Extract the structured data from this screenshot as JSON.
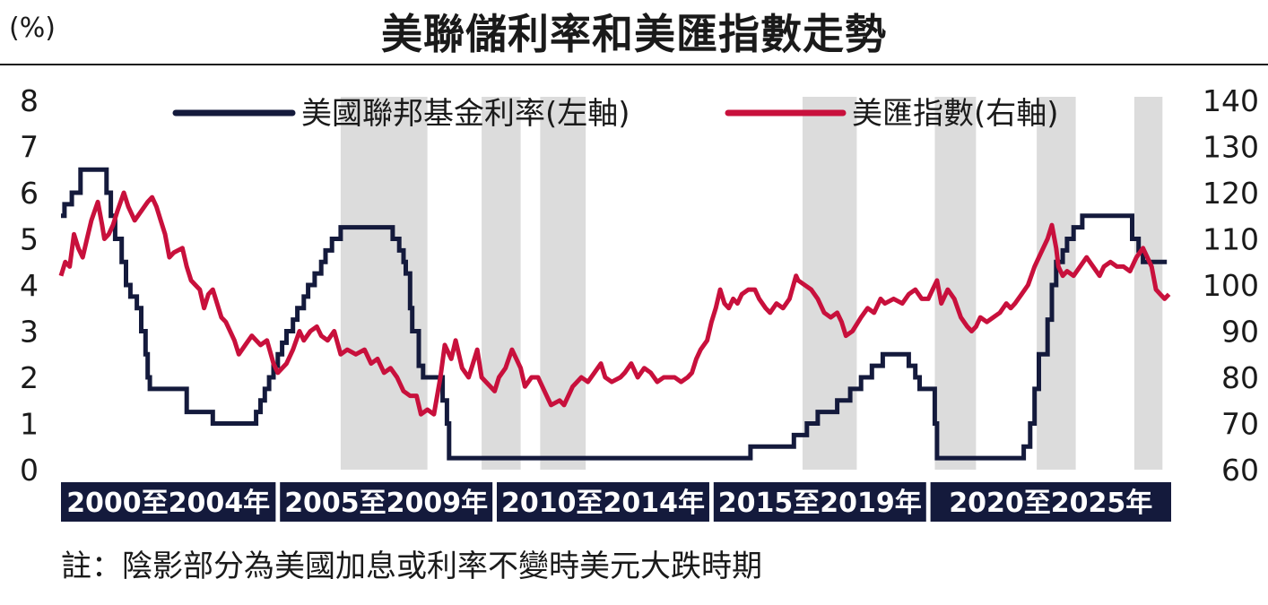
{
  "header": {
    "unit": "(%)",
    "title": "美聯儲利率和美匯指數走勢"
  },
  "note": "註：陰影部分為美國加息或利率不變時美元大跌時期",
  "colors": {
    "rate": "#141a3c",
    "dxy": "#c8103c",
    "shade": "#dcdcdc",
    "period_bg": "#141a3c"
  },
  "chart_data": {
    "type": "line",
    "title": "美聯儲利率和美匯指數走勢",
    "x_range": [
      2000.0,
      2025.6
    ],
    "y_left": {
      "label": "(%)",
      "min": 0,
      "max": 8,
      "ticks": [
        "0",
        "1",
        "2",
        "3",
        "4",
        "5",
        "6",
        "7",
        "8"
      ]
    },
    "y_right": {
      "min": 60,
      "max": 140,
      "ticks": [
        "60",
        "70",
        "80",
        "90",
        "100",
        "110",
        "120",
        "130",
        "140"
      ]
    },
    "legend": {
      "placement": "top",
      "entries": [
        "美國聯邦基金利率(左軸)",
        "美匯指數(右軸)"
      ]
    },
    "periods": [
      {
        "label": "2000至2004年",
        "start": 2000.0,
        "end": 2004.95
      },
      {
        "label": "2005至2009年",
        "start": 2005.05,
        "end": 2009.95
      },
      {
        "label": "2010至2014年",
        "start": 2010.05,
        "end": 2014.95
      },
      {
        "label": "2015至2019年",
        "start": 2015.05,
        "end": 2019.95
      },
      {
        "label": "2020至2025年",
        "start": 2020.05,
        "end": 2025.6
      }
    ],
    "shaded_periods": [
      [
        2006.45,
        2008.45
      ],
      [
        2009.7,
        2010.6
      ],
      [
        2011.05,
        2012.1
      ],
      [
        2017.1,
        2018.35
      ],
      [
        2020.15,
        2021.1
      ],
      [
        2022.5,
        2023.4
      ],
      [
        2024.75,
        2025.4
      ]
    ],
    "series": [
      {
        "name": "美國聯邦基金利率(左軸)",
        "axis": "left",
        "points": [
          [
            2000.0,
            5.5
          ],
          [
            2000.08,
            5.75
          ],
          [
            2000.25,
            6.0
          ],
          [
            2000.45,
            6.5
          ],
          [
            2001.05,
            6.0
          ],
          [
            2001.15,
            5.5
          ],
          [
            2001.25,
            5.0
          ],
          [
            2001.4,
            4.5
          ],
          [
            2001.5,
            4.0
          ],
          [
            2001.6,
            3.75
          ],
          [
            2001.75,
            3.5
          ],
          [
            2001.85,
            3.0
          ],
          [
            2001.95,
            2.5
          ],
          [
            2002.0,
            2.0
          ],
          [
            2002.05,
            1.75
          ],
          [
            2002.9,
            1.25
          ],
          [
            2003.5,
            1.0
          ],
          [
            2004.5,
            1.25
          ],
          [
            2004.6,
            1.5
          ],
          [
            2004.7,
            1.75
          ],
          [
            2004.8,
            2.0
          ],
          [
            2004.9,
            2.25
          ],
          [
            2005.0,
            2.5
          ],
          [
            2005.1,
            2.75
          ],
          [
            2005.2,
            3.0
          ],
          [
            2005.35,
            3.25
          ],
          [
            2005.45,
            3.5
          ],
          [
            2005.6,
            3.75
          ],
          [
            2005.7,
            4.0
          ],
          [
            2005.85,
            4.25
          ],
          [
            2006.0,
            4.5
          ],
          [
            2006.1,
            4.75
          ],
          [
            2006.25,
            5.0
          ],
          [
            2006.45,
            5.25
          ],
          [
            2007.65,
            5.0
          ],
          [
            2007.8,
            4.75
          ],
          [
            2007.9,
            4.5
          ],
          [
            2007.95,
            4.25
          ],
          [
            2008.05,
            3.5
          ],
          [
            2008.1,
            3.0
          ],
          [
            2008.25,
            2.25
          ],
          [
            2008.35,
            2.0
          ],
          [
            2008.8,
            1.5
          ],
          [
            2008.9,
            1.0
          ],
          [
            2008.95,
            0.25
          ],
          [
            2015.9,
            0.5
          ],
          [
            2016.9,
            0.75
          ],
          [
            2017.2,
            1.0
          ],
          [
            2017.45,
            1.25
          ],
          [
            2017.9,
            1.5
          ],
          [
            2018.2,
            1.75
          ],
          [
            2018.45,
            2.0
          ],
          [
            2018.7,
            2.25
          ],
          [
            2018.95,
            2.5
          ],
          [
            2019.55,
            2.25
          ],
          [
            2019.7,
            2.0
          ],
          [
            2019.8,
            1.75
          ],
          [
            2020.15,
            1.0
          ],
          [
            2020.2,
            0.25
          ],
          [
            2022.2,
            0.5
          ],
          [
            2022.35,
            1.0
          ],
          [
            2022.45,
            1.75
          ],
          [
            2022.55,
            2.5
          ],
          [
            2022.75,
            3.25
          ],
          [
            2022.85,
            4.0
          ],
          [
            2022.95,
            4.5
          ],
          [
            2023.1,
            4.75
          ],
          [
            2023.2,
            5.0
          ],
          [
            2023.35,
            5.25
          ],
          [
            2023.55,
            5.5
          ],
          [
            2024.7,
            5.0
          ],
          [
            2024.85,
            4.75
          ],
          [
            2024.95,
            4.5
          ],
          [
            2025.5,
            4.5
          ]
        ]
      },
      {
        "name": "美匯指數(右軸)",
        "axis": "right",
        "points": [
          [
            2000.0,
            102
          ],
          [
            2000.1,
            105
          ],
          [
            2000.2,
            104
          ],
          [
            2000.3,
            111
          ],
          [
            2000.4,
            108
          ],
          [
            2000.5,
            106
          ],
          [
            2000.6,
            110
          ],
          [
            2000.7,
            114
          ],
          [
            2000.85,
            118
          ],
          [
            2000.95,
            113
          ],
          [
            2001.0,
            110
          ],
          [
            2001.1,
            111
          ],
          [
            2001.2,
            113
          ],
          [
            2001.3,
            116
          ],
          [
            2001.45,
            120
          ],
          [
            2001.55,
            117
          ],
          [
            2001.7,
            114
          ],
          [
            2001.85,
            116
          ],
          [
            2002.0,
            118
          ],
          [
            2002.1,
            119
          ],
          [
            2002.2,
            117
          ],
          [
            2002.3,
            114
          ],
          [
            2002.4,
            111
          ],
          [
            2002.5,
            106
          ],
          [
            2002.6,
            107
          ],
          [
            2002.8,
            108
          ],
          [
            2002.9,
            104
          ],
          [
            2003.0,
            101
          ],
          [
            2003.1,
            100
          ],
          [
            2003.2,
            99
          ],
          [
            2003.3,
            95
          ],
          [
            2003.4,
            98
          ],
          [
            2003.5,
            99
          ],
          [
            2003.6,
            96
          ],
          [
            2003.7,
            93
          ],
          [
            2003.8,
            92
          ],
          [
            2004.0,
            88
          ],
          [
            2004.1,
            85
          ],
          [
            2004.25,
            87
          ],
          [
            2004.4,
            89
          ],
          [
            2004.6,
            87
          ],
          [
            2004.75,
            88
          ],
          [
            2004.9,
            83
          ],
          [
            2005.0,
            81
          ],
          [
            2005.2,
            83
          ],
          [
            2005.35,
            86
          ],
          [
            2005.5,
            90
          ],
          [
            2005.6,
            88
          ],
          [
            2005.75,
            90
          ],
          [
            2005.9,
            91
          ],
          [
            2006.0,
            89
          ],
          [
            2006.15,
            88
          ],
          [
            2006.3,
            90
          ],
          [
            2006.45,
            85
          ],
          [
            2006.6,
            86
          ],
          [
            2006.8,
            85
          ],
          [
            2007.0,
            86
          ],
          [
            2007.15,
            83
          ],
          [
            2007.3,
            84
          ],
          [
            2007.45,
            81
          ],
          [
            2007.6,
            82
          ],
          [
            2007.75,
            80
          ],
          [
            2007.9,
            77
          ],
          [
            2008.05,
            76
          ],
          [
            2008.2,
            76
          ],
          [
            2008.3,
            72
          ],
          [
            2008.45,
            73
          ],
          [
            2008.6,
            72
          ],
          [
            2008.75,
            80
          ],
          [
            2008.85,
            87
          ],
          [
            2009.0,
            84
          ],
          [
            2009.1,
            88
          ],
          [
            2009.25,
            82
          ],
          [
            2009.4,
            80
          ],
          [
            2009.5,
            83
          ],
          [
            2009.6,
            86
          ],
          [
            2009.7,
            80
          ],
          [
            2009.8,
            79
          ],
          [
            2010.0,
            77
          ],
          [
            2010.1,
            80
          ],
          [
            2010.25,
            82
          ],
          [
            2010.4,
            86
          ],
          [
            2010.5,
            84
          ],
          [
            2010.6,
            82
          ],
          [
            2010.7,
            78
          ],
          [
            2010.85,
            80
          ],
          [
            2011.0,
            80
          ],
          [
            2011.1,
            78
          ],
          [
            2011.2,
            76
          ],
          [
            2011.3,
            74
          ],
          [
            2011.5,
            75
          ],
          [
            2011.6,
            74
          ],
          [
            2011.8,
            78
          ],
          [
            2012.0,
            80
          ],
          [
            2012.15,
            79
          ],
          [
            2012.3,
            81
          ],
          [
            2012.45,
            83
          ],
          [
            2012.55,
            80
          ],
          [
            2012.7,
            79
          ],
          [
            2012.9,
            80
          ],
          [
            2013.0,
            81
          ],
          [
            2013.15,
            83
          ],
          [
            2013.3,
            80
          ],
          [
            2013.45,
            82
          ],
          [
            2013.6,
            81
          ],
          [
            2013.75,
            79
          ],
          [
            2013.9,
            80
          ],
          [
            2014.0,
            80
          ],
          [
            2014.15,
            80
          ],
          [
            2014.3,
            79
          ],
          [
            2014.45,
            80
          ],
          [
            2014.55,
            81
          ],
          [
            2014.65,
            84
          ],
          [
            2014.75,
            86
          ],
          [
            2014.9,
            88
          ],
          [
            2015.0,
            92
          ],
          [
            2015.1,
            95
          ],
          [
            2015.2,
            99
          ],
          [
            2015.3,
            96
          ],
          [
            2015.4,
            95
          ],
          [
            2015.5,
            97
          ],
          [
            2015.6,
            96
          ],
          [
            2015.7,
            98
          ],
          [
            2015.85,
            99
          ],
          [
            2016.0,
            99
          ],
          [
            2016.1,
            97
          ],
          [
            2016.25,
            95
          ],
          [
            2016.35,
            94
          ],
          [
            2016.5,
            96
          ],
          [
            2016.65,
            95
          ],
          [
            2016.8,
            97
          ],
          [
            2016.95,
            102
          ],
          [
            2017.0,
            101
          ],
          [
            2017.15,
            100
          ],
          [
            2017.3,
            99
          ],
          [
            2017.45,
            97
          ],
          [
            2017.6,
            94
          ],
          [
            2017.75,
            93
          ],
          [
            2017.9,
            94
          ],
          [
            2018.0,
            92
          ],
          [
            2018.1,
            89
          ],
          [
            2018.25,
            90
          ],
          [
            2018.45,
            93
          ],
          [
            2018.6,
            95
          ],
          [
            2018.75,
            94
          ],
          [
            2018.9,
            97
          ],
          [
            2019.0,
            96
          ],
          [
            2019.2,
            97
          ],
          [
            2019.4,
            96
          ],
          [
            2019.55,
            98
          ],
          [
            2019.7,
            99
          ],
          [
            2019.85,
            97
          ],
          [
            2020.0,
            97
          ],
          [
            2020.1,
            99
          ],
          [
            2020.2,
            101
          ],
          [
            2020.3,
            96
          ],
          [
            2020.45,
            99
          ],
          [
            2020.6,
            97
          ],
          [
            2020.75,
            93
          ],
          [
            2020.9,
            91
          ],
          [
            2021.0,
            90
          ],
          [
            2021.1,
            91
          ],
          [
            2021.2,
            93
          ],
          [
            2021.35,
            92
          ],
          [
            2021.5,
            93
          ],
          [
            2021.65,
            94
          ],
          [
            2021.8,
            96
          ],
          [
            2021.9,
            95
          ],
          [
            2022.0,
            96
          ],
          [
            2022.15,
            98
          ],
          [
            2022.3,
            100
          ],
          [
            2022.45,
            104
          ],
          [
            2022.6,
            107
          ],
          [
            2022.75,
            110
          ],
          [
            2022.85,
            113
          ],
          [
            2022.95,
            108
          ],
          [
            2023.0,
            104
          ],
          [
            2023.1,
            102
          ],
          [
            2023.2,
            103
          ],
          [
            2023.35,
            102
          ],
          [
            2023.5,
            104
          ],
          [
            2023.65,
            106
          ],
          [
            2023.8,
            104
          ],
          [
            2023.95,
            102
          ],
          [
            2024.05,
            104
          ],
          [
            2024.2,
            105
          ],
          [
            2024.35,
            104
          ],
          [
            2024.5,
            104
          ],
          [
            2024.65,
            103
          ],
          [
            2024.8,
            106
          ],
          [
            2024.95,
            108
          ],
          [
            2025.05,
            106
          ],
          [
            2025.15,
            104
          ],
          [
            2025.25,
            99
          ],
          [
            2025.35,
            98
          ],
          [
            2025.45,
            97
          ],
          [
            2025.55,
            98
          ]
        ]
      }
    ]
  }
}
